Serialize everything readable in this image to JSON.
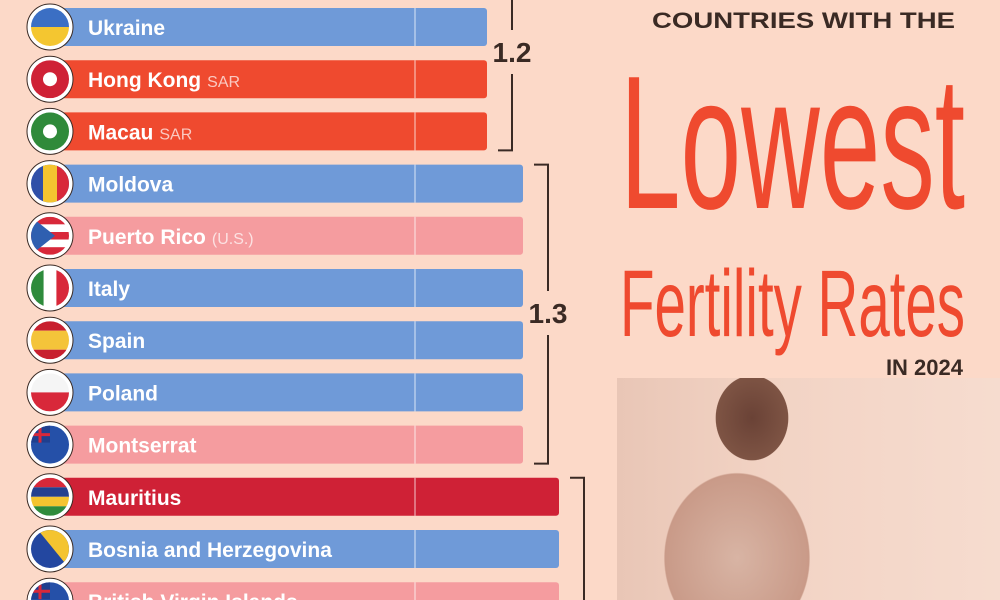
{
  "header": {
    "kicker": "COUNTRIES WITH THE",
    "title_big": "Lowest",
    "title_sub": "Fertility Rates",
    "year": "IN 2024"
  },
  "colors": {
    "background": "#fcd9c8",
    "blue": "#6f9ad8",
    "orange_red": "#ef4a2f",
    "pink": "#f59c9f",
    "crimson": "#cf2136",
    "title_red": "#ef4a2f",
    "text_dark": "#3a2a24"
  },
  "chart_data": {
    "type": "bar",
    "orientation": "horizontal",
    "title": "COUNTRIES WITH THE Lowest Fertility Rates IN 2024",
    "xlim": [
      0,
      1.4
    ],
    "gridline_at": 1.0,
    "groups": [
      {
        "label": "1.2",
        "value": 1.2
      },
      {
        "label": "1.3",
        "value": 1.3
      },
      {
        "label": "",
        "value": 1.4
      }
    ],
    "categories": [
      {
        "name": "Ukraine",
        "suffix": "",
        "value": 1.2,
        "color": "blue",
        "flag": "ukraine-flag"
      },
      {
        "name": "Hong Kong",
        "suffix": "SAR",
        "value": 1.2,
        "color": "orange_red",
        "flag": "hong-kong-flag"
      },
      {
        "name": "Macau",
        "suffix": "SAR",
        "value": 1.2,
        "color": "orange_red",
        "flag": "macau-flag"
      },
      {
        "name": "Moldova",
        "suffix": "",
        "value": 1.3,
        "color": "blue",
        "flag": "moldova-flag"
      },
      {
        "name": "Puerto Rico",
        "suffix": "(U.S.)",
        "value": 1.3,
        "color": "pink",
        "flag": "puerto-rico-flag"
      },
      {
        "name": "Italy",
        "suffix": "",
        "value": 1.3,
        "color": "blue",
        "flag": "italy-flag"
      },
      {
        "name": "Spain",
        "suffix": "",
        "value": 1.3,
        "color": "blue",
        "flag": "spain-flag"
      },
      {
        "name": "Poland",
        "suffix": "",
        "value": 1.3,
        "color": "blue",
        "flag": "poland-flag"
      },
      {
        "name": "Montserrat",
        "suffix": "",
        "value": 1.3,
        "color": "pink",
        "flag": "montserrat-flag"
      },
      {
        "name": "Mauritius",
        "suffix": "",
        "value": 1.4,
        "color": "crimson",
        "flag": "mauritius-flag"
      },
      {
        "name": "Bosnia and Herzegovina",
        "suffix": "",
        "value": 1.4,
        "color": "blue",
        "flag": "bosnia-flag"
      },
      {
        "name": "British Virgin Islands",
        "suffix": "",
        "value": 1.4,
        "color": "pink",
        "flag": "british-virgin-islands-flag"
      }
    ]
  }
}
